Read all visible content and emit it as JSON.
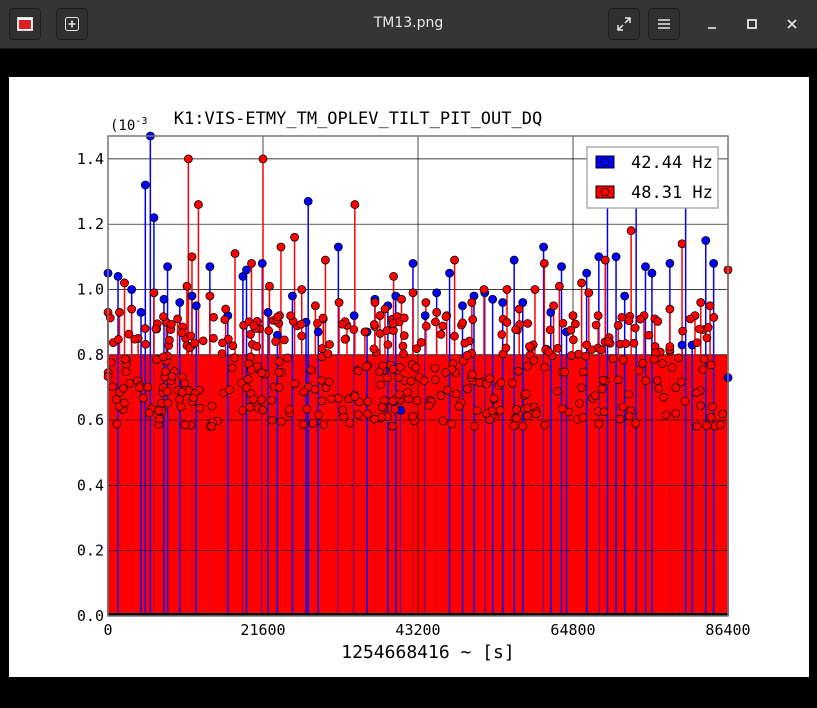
{
  "window": {
    "title": "TM13.png",
    "icons": {
      "app": "image-file-icon",
      "new_tab": "plus-icon",
      "fullscreen": "expand-icon",
      "menu": "hamburger-menu-icon",
      "minimize": "minimize-icon",
      "maximize": "maximize-icon",
      "close": "close-icon"
    }
  },
  "chart_data": {
    "type": "line",
    "title": "K1:VIS-ETMY_TM_OPLEV_TILT_PIT_OUT_DQ",
    "xlabel": "1254668416 ~ [s]",
    "ylabel": "",
    "y_multiplier": "(10-3",
    "xlim": [
      0,
      86400
    ],
    "ylim": [
      0,
      1.47
    ],
    "x_ticks": [
      "0",
      "21600",
      "43200",
      "64800",
      "86400"
    ],
    "y_ticks": [
      "0.0",
      "0.2",
      "0.4",
      "0.6",
      "0.8",
      "1.0",
      "1.2",
      "1.4"
    ],
    "grid": true,
    "legend_position": "top-right",
    "series": [
      {
        "name": "42.44 Hz",
        "color": "#0000ff",
        "style": "stem",
        "points": [
          [
            0,
            1.05
          ],
          [
            1400,
            1.04
          ],
          [
            3300,
            1.0
          ],
          [
            4600,
            0.93
          ],
          [
            5200,
            1.32
          ],
          [
            5900,
            1.47
          ],
          [
            6400,
            1.22
          ],
          [
            7800,
            0.97
          ],
          [
            8300,
            1.07
          ],
          [
            10000,
            0.96
          ],
          [
            11700,
            0.98
          ],
          [
            12300,
            0.95
          ],
          [
            14200,
            1.07
          ],
          [
            16700,
            0.92
          ],
          [
            18800,
            1.04
          ],
          [
            19300,
            1.06
          ],
          [
            21500,
            1.08
          ],
          [
            22300,
            0.93
          ],
          [
            23600,
            0.86
          ],
          [
            25700,
            0.98
          ],
          [
            27600,
            0.9
          ],
          [
            27900,
            1.27
          ],
          [
            29300,
            0.87
          ],
          [
            32100,
            1.13
          ],
          [
            34300,
            0.92
          ],
          [
            36100,
            0.87
          ],
          [
            37200,
            0.97
          ],
          [
            39000,
            0.95
          ],
          [
            40100,
            0.98
          ],
          [
            40800,
            0.63
          ],
          [
            42500,
            1.08
          ],
          [
            44200,
            0.92
          ],
          [
            45800,
            0.99
          ],
          [
            47600,
            1.05
          ],
          [
            49400,
            0.95
          ],
          [
            51000,
            0.98
          ],
          [
            52500,
            0.99
          ],
          [
            53600,
            0.97
          ],
          [
            55000,
            0.96
          ],
          [
            56600,
            1.09
          ],
          [
            57800,
            0.96
          ],
          [
            60700,
            1.13
          ],
          [
            61700,
            0.93
          ],
          [
            63200,
            1.07
          ],
          [
            63900,
            0.87
          ],
          [
            66700,
            1.05
          ],
          [
            68400,
            1.1
          ],
          [
            69600,
            1.37
          ],
          [
            70800,
            1.1
          ],
          [
            72000,
            0.98
          ],
          [
            73600,
            1.27
          ],
          [
            74900,
            1.07
          ],
          [
            75800,
            1.05
          ],
          [
            78300,
            1.08
          ],
          [
            80000,
            0.83
          ],
          [
            80500,
            1.27
          ],
          [
            81400,
            0.83
          ],
          [
            83300,
            1.15
          ],
          [
            84400,
            1.08
          ],
          [
            86400,
            0.73
          ]
        ]
      },
      {
        "name": "48.31 Hz",
        "color": "#ff0000",
        "style": "stem",
        "points": [
          [
            0,
            0.93
          ],
          [
            1600,
            0.93
          ],
          [
            2300,
            1.02
          ],
          [
            3300,
            0.94
          ],
          [
            4200,
            0.85
          ],
          [
            6400,
            0.99
          ],
          [
            8100,
            0.9
          ],
          [
            9700,
            0.91
          ],
          [
            11000,
            1.01
          ],
          [
            11200,
            1.4
          ],
          [
            11700,
            1.1
          ],
          [
            12600,
            1.26
          ],
          [
            14200,
            0.98
          ],
          [
            16400,
            0.94
          ],
          [
            17700,
            1.11
          ],
          [
            18900,
            0.89
          ],
          [
            20000,
            1.08
          ],
          [
            21100,
            0.88
          ],
          [
            21600,
            1.4
          ],
          [
            22500,
            1.01
          ],
          [
            23900,
            0.92
          ],
          [
            24100,
            1.13
          ],
          [
            26000,
            1.16
          ],
          [
            27000,
            1.0
          ],
          [
            28900,
            0.95
          ],
          [
            30000,
            0.91
          ],
          [
            30300,
            1.09
          ],
          [
            32200,
            0.96
          ],
          [
            33300,
            0.89
          ],
          [
            34400,
            1.26
          ],
          [
            35800,
            0.87
          ],
          [
            37200,
            0.96
          ],
          [
            37900,
            0.92
          ],
          [
            38600,
            0.94
          ],
          [
            39800,
            1.04
          ],
          [
            40900,
            0.97
          ],
          [
            42500,
            0.99
          ],
          [
            44300,
            0.96
          ],
          [
            45800,
            0.93
          ],
          [
            47200,
            0.92
          ],
          [
            48300,
            1.09
          ],
          [
            50700,
            0.96
          ],
          [
            52400,
            1.0
          ],
          [
            55600,
            1.0
          ],
          [
            57300,
            0.94
          ],
          [
            59500,
            1.0
          ],
          [
            60800,
            1.08
          ],
          [
            62100,
            0.95
          ],
          [
            62900,
            1.01
          ],
          [
            64800,
            0.92
          ],
          [
            66000,
            1.02
          ],
          [
            67000,
            0.99
          ],
          [
            68300,
            0.92
          ],
          [
            69300,
            1.09
          ],
          [
            71100,
            0.89
          ],
          [
            72900,
            1.18
          ],
          [
            74700,
            0.92
          ],
          [
            76200,
            0.91
          ],
          [
            78300,
            0.94
          ],
          [
            80000,
            1.14
          ],
          [
            81800,
            0.92
          ],
          [
            82600,
            0.96
          ],
          [
            83900,
            0.95
          ],
          [
            86400,
            1.06
          ]
        ]
      }
    ]
  }
}
